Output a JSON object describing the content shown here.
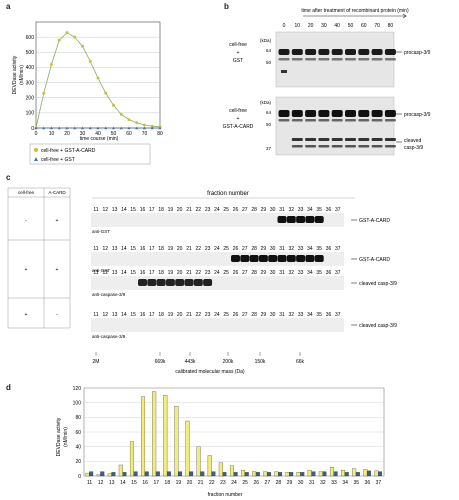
{
  "panels": {
    "a": "a",
    "b": "b",
    "c": "c",
    "d": "d"
  },
  "panel_a": {
    "ylabel_line1": "DEVDase activity",
    "ylabel_line2": "(nM/min)",
    "xlabel": "time course (min)",
    "yticks": [
      "0",
      "100",
      "200",
      "300",
      "400",
      "500",
      "600"
    ],
    "xticks": [
      "0",
      "10",
      "20",
      "30",
      "40",
      "50",
      "60",
      "70",
      "80"
    ],
    "legend": [
      "cell-free + GST-A-CARD",
      "cell-free + GST"
    ]
  },
  "panel_b": {
    "header": "time after treatment of recombinant protein (min)",
    "time_labels": [
      "0",
      "10",
      "20",
      "30",
      "40",
      "50",
      "60",
      "70",
      "80"
    ],
    "kda_label": "(kDa)",
    "blot1": {
      "cond_line1": "cell-free",
      "cond_line2": "+",
      "cond_line3": "GST",
      "markers": [
        "64",
        "50"
      ],
      "band": "procasp-3/9"
    },
    "blot2": {
      "cond_line1": "cell-free",
      "cond_line2": "+",
      "cond_line3": "GST-A-CARD",
      "markers": [
        "64",
        "50",
        "37"
      ],
      "band1": "procasp-3/9",
      "band2_line1": "cleaved",
      "band2_line2": "casp-3/9"
    }
  },
  "panel_c": {
    "table_headers": [
      "cell-free",
      "A-CARD"
    ],
    "table_rows": [
      [
        "-",
        "+"
      ],
      [
        "+",
        "+"
      ],
      [
        "+",
        "-"
      ]
    ],
    "header": "fraction number",
    "fractions": [
      "11",
      "12",
      "13",
      "14",
      "15",
      "16",
      "17",
      "18",
      "19",
      "20",
      "21",
      "22",
      "23",
      "24",
      "25",
      "26",
      "27",
      "28",
      "29",
      "30",
      "31",
      "32",
      "33",
      "34",
      "35",
      "36",
      "37"
    ],
    "blot_labels": [
      "anti-GST",
      "anti-GST",
      "anti-caspase-3/9",
      "anti-caspase-3/9"
    ],
    "band_labels": [
      "GST-A-CARD",
      "GST-A-CARD",
      "cleaved casp-3/9",
      "cleaved casp-3/9"
    ],
    "mass_markers": [
      "2M",
      "669k",
      "443k",
      "200k",
      "150k",
      "66k"
    ],
    "mass_axis": "calibrated molecular mass (Da)"
  },
  "chart_data": [
    {
      "type": "line",
      "title": "",
      "xlabel": "time course (min)",
      "ylabel": "DEVDase activity (nM/min)",
      "x": [
        0,
        5,
        10,
        15,
        20,
        25,
        30,
        35,
        40,
        45,
        50,
        55,
        60,
        65,
        70,
        75,
        80
      ],
      "xlim": [
        0,
        80
      ],
      "ylim": [
        0,
        700
      ],
      "series": [
        {
          "name": "cell-free + GST-A-CARD",
          "color": "#c9c230",
          "values": [
            0,
            230,
            420,
            580,
            630,
            600,
            540,
            440,
            330,
            230,
            150,
            90,
            55,
            35,
            20,
            12,
            8
          ]
        },
        {
          "name": "cell-free + GST",
          "color": "#4a6fa8",
          "values": [
            0,
            0,
            0,
            0,
            0,
            0,
            0,
            0,
            0,
            0,
            0,
            0,
            0,
            0,
            0,
            0,
            0
          ]
        }
      ]
    },
    {
      "type": "bar",
      "title": "",
      "xlabel": "fraction number",
      "ylabel": "DEVDase activity (nM/min)",
      "ylim": [
        0,
        120
      ],
      "yticks": [
        0,
        20,
        40,
        60,
        80,
        100,
        120
      ],
      "categories": [
        "11",
        "12",
        "13",
        "14",
        "15",
        "16",
        "17",
        "18",
        "19",
        "20",
        "21",
        "22",
        "23",
        "24",
        "25",
        "26",
        "27",
        "28",
        "29",
        "30",
        "31",
        "32",
        "33",
        "34",
        "35",
        "36",
        "37"
      ],
      "series": [
        {
          "name": "",
          "color": "#f2ec7a",
          "values": [
            4,
            2,
            3,
            15,
            47,
            108,
            115,
            110,
            95,
            75,
            40,
            28,
            18,
            14,
            8,
            6,
            6,
            6,
            5,
            5,
            8,
            6,
            12,
            8,
            10,
            9,
            7
          ]
        },
        {
          "name": "",
          "color": "#3b5f86",
          "values": [
            6,
            6,
            5,
            5,
            6,
            6,
            6,
            6,
            6,
            6,
            6,
            6,
            5,
            5,
            5,
            5,
            5,
            5,
            5,
            5,
            6,
            6,
            6,
            5,
            5,
            7,
            6
          ]
        }
      ]
    }
  ]
}
